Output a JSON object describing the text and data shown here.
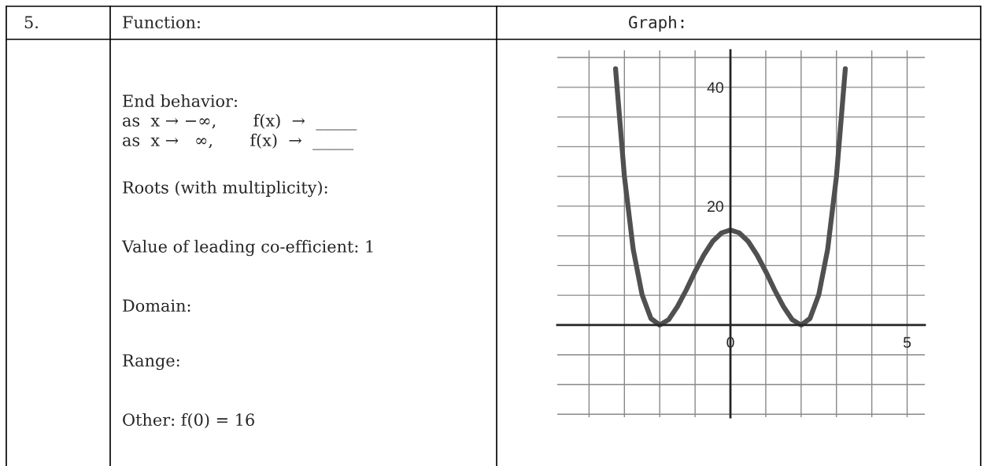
{
  "chart_data": {
    "type": "line",
    "title": "Graph:",
    "annotations": [
      "5.",
      "Function:",
      "End behavior:",
      "as  x → −∞,       f(x)  →  _____",
      "as  x →   ∞,       f(x)  →  _____",
      "Roots (with multiplicity):",
      "Value of leading co-efficient: 1",
      "Domain:",
      "Range:",
      "Other: f(0) = 16"
    ],
    "x": [
      -3.25,
      -3,
      -2.75,
      -2.5,
      -2.25,
      -2,
      -1.75,
      -1.5,
      -1.25,
      -1,
      -0.75,
      -0.5,
      -0.25,
      0,
      0.25,
      0.5,
      0.75,
      1,
      1.25,
      1.5,
      1.75,
      2,
      2.25,
      2.5,
      2.75,
      3,
      3.25
    ],
    "series": [
      {
        "color": "#505050",
        "values": [
          43.1,
          25,
          12.7,
          5.1,
          1.1,
          0,
          0.9,
          3.1,
          5.9,
          9,
          11.8,
          14.1,
          15.5,
          16,
          15.5,
          14.1,
          11.8,
          9,
          5.9,
          3.1,
          0.9,
          0,
          1.1,
          5.1,
          12.7,
          25,
          43.1
        ]
      }
    ],
    "xlim": [
      -4.9,
      5.5
    ],
    "ylim": [
      -15.5,
      46.2
    ],
    "xticks": [
      {
        "value": -4,
        "label": null
      },
      {
        "value": -3,
        "label": null
      },
      {
        "value": -2,
        "label": null
      },
      {
        "value": -1,
        "label": null
      },
      0,
      {
        "value": 1,
        "label": null
      },
      {
        "value": 2,
        "label": null
      },
      {
        "value": 3,
        "label": null
      },
      {
        "value": 4,
        "label": null
      },
      5
    ],
    "yticks": [
      {
        "value": -15,
        "label": null
      },
      {
        "value": -10,
        "label": null
      },
      {
        "value": -5,
        "label": null
      },
      {
        "value": 0,
        "label": null
      },
      {
        "value": 5,
        "label": null
      },
      {
        "value": 10,
        "label": null
      },
      {
        "value": 15,
        "label": null
      },
      20,
      {
        "value": 25,
        "label": null
      },
      {
        "value": 30,
        "label": null
      },
      {
        "value": 35,
        "label": null
      },
      40,
      {
        "value": 45,
        "label": null
      }
    ],
    "grid": true
  }
}
